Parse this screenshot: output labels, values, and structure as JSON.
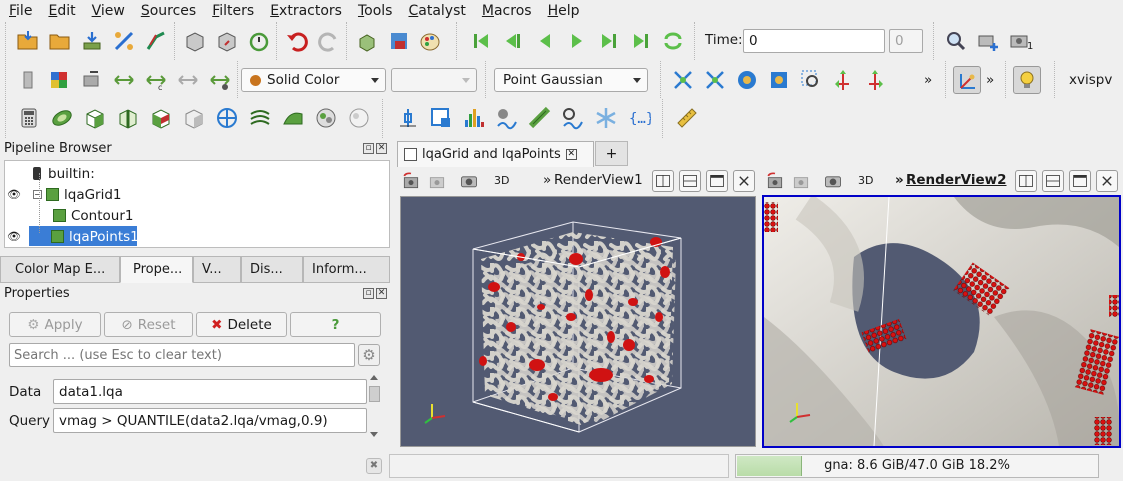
{
  "menu": [
    "File",
    "Edit",
    "View",
    "Sources",
    "Filters",
    "Extractors",
    "Tools",
    "Catalyst",
    "Macros",
    "Help"
  ],
  "toolbar": {
    "time_label": "Time:",
    "time_value": "0",
    "time_index": "0",
    "camera_count": "1",
    "coloring": "Solid Color",
    "component": "",
    "representation": "Point Gaussian",
    "more": "»",
    "plugin_label": "xvispv"
  },
  "pipeline": {
    "title": "Pipeline Browser",
    "items": [
      {
        "label": "builtin:"
      },
      {
        "label": "lqaGrid1"
      },
      {
        "label": "Contour1"
      },
      {
        "label": "lqaPoints1"
      }
    ]
  },
  "panel_tabs": [
    "Color Map E...",
    "Prope...",
    "V...",
    "Dis...",
    "Inform..."
  ],
  "properties": {
    "title": "Properties",
    "apply": "Apply",
    "reset": "Reset",
    "delete": "Delete",
    "help": "?",
    "search_placeholder": "Search ... (use Esc to clear text)",
    "data_label": "Data",
    "data_value": "data1.lqa",
    "query_label": "Query",
    "query_value": "vmag > QUANTILE(data2.lqa/vmag,0.9)"
  },
  "layout_tabs": {
    "active": "lqaGrid and lqaPoints",
    "add": "+"
  },
  "views": [
    {
      "name": "RenderView1",
      "mode": "3D",
      "prefix": "»"
    },
    {
      "name": "RenderView2",
      "mode": "3D",
      "prefix": "»"
    }
  ],
  "status": {
    "memory": "gna: 8.6 GiB/47.0 GiB 18.2%",
    "memory_fraction": 0.182
  },
  "colors": {
    "view_bg": "#525a72",
    "accent": "#3a7dd6",
    "selected_view": "#0000c8",
    "points": "#d01212"
  }
}
